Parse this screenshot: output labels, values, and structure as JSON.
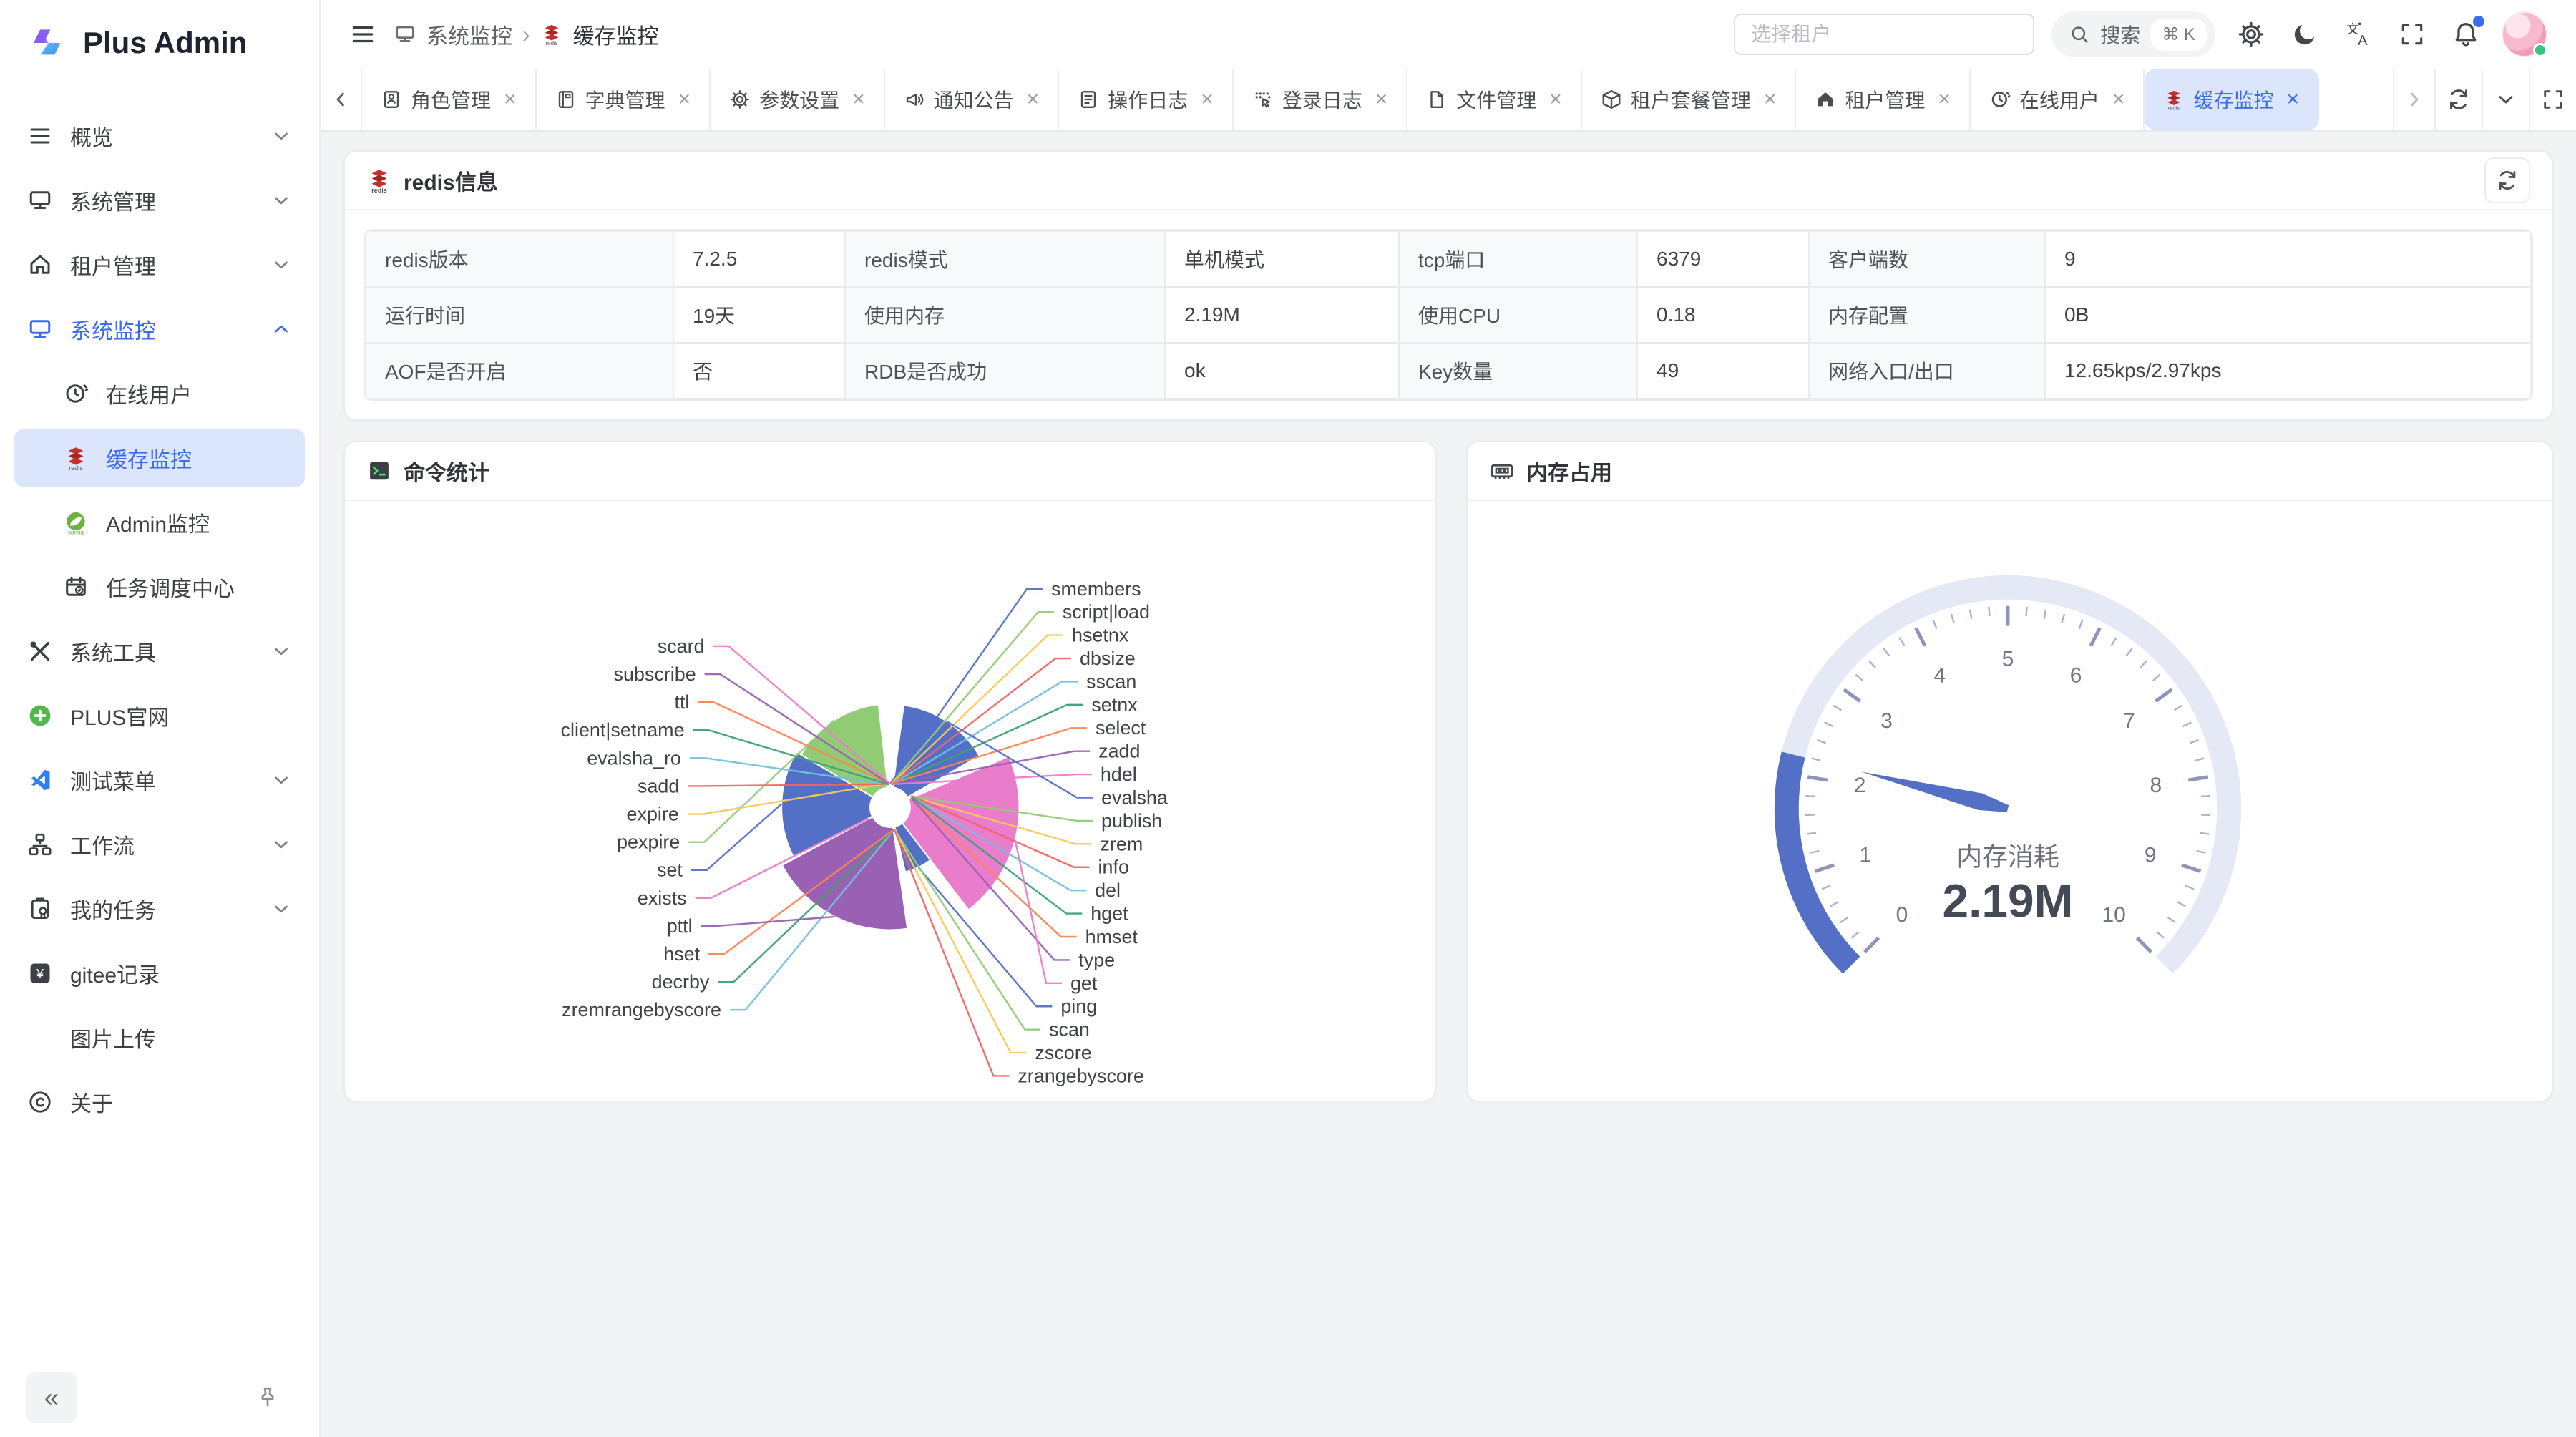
{
  "app": {
    "name": "Plus Admin"
  },
  "header": {
    "breadcrumb": {
      "parent": "系统监控",
      "separator": "›",
      "current": "缓存监控"
    },
    "tenant_placeholder": "选择租户",
    "search_label": "搜索",
    "search_shortcut": "⌘ K"
  },
  "sidebar": {
    "items": [
      {
        "label": "概览",
        "icon": "menu-icon",
        "chevron": "down"
      },
      {
        "label": "系统管理",
        "icon": "monitor-icon",
        "chevron": "down"
      },
      {
        "label": "租户管理",
        "icon": "home-icon",
        "chevron": "down"
      },
      {
        "label": "系统监控",
        "icon": "monitor-icon",
        "chevron": "up",
        "active": true,
        "children": [
          {
            "label": "在线用户",
            "icon": "clock-icon"
          },
          {
            "label": "缓存监控",
            "icon": "redis-icon",
            "active": true
          },
          {
            "label": "Admin监控",
            "icon": "spring-icon"
          },
          {
            "label": "任务调度中心",
            "icon": "calendar-icon"
          }
        ]
      },
      {
        "label": "系统工具",
        "icon": "tools-icon",
        "chevron": "down"
      },
      {
        "label": "PLUS官网",
        "icon": "plus-circle-icon"
      },
      {
        "label": "测试菜单",
        "icon": "vscode-icon",
        "chevron": "down"
      },
      {
        "label": "工作流",
        "icon": "workflow-icon",
        "chevron": "down"
      },
      {
        "label": "我的任务",
        "icon": "clipboard-icon",
        "chevron": "down"
      },
      {
        "label": "gitee记录",
        "icon": "gitee-icon"
      },
      {
        "label": "图片上传",
        "icon": ""
      },
      {
        "label": "关于",
        "icon": "copyright-icon"
      }
    ],
    "collapse_label": "«"
  },
  "tabs": {
    "close_glyph": "×",
    "items": [
      {
        "label": "角色管理",
        "icon": "idcard-icon"
      },
      {
        "label": "字典管理",
        "icon": "book-icon"
      },
      {
        "label": "参数设置",
        "icon": "gear-icon"
      },
      {
        "label": "通知公告",
        "icon": "horn-icon"
      },
      {
        "label": "操作日志",
        "icon": "oplog-icon"
      },
      {
        "label": "登录日志",
        "icon": "loginlog-icon"
      },
      {
        "label": "文件管理",
        "icon": "file-icon"
      },
      {
        "label": "租户套餐管理",
        "icon": "box-icon"
      },
      {
        "label": "租户管理",
        "icon": "home-fill-icon"
      },
      {
        "label": "在线用户",
        "icon": "clock-icon"
      },
      {
        "label": "缓存监控",
        "icon": "redis-icon",
        "active": true
      }
    ]
  },
  "redis_info": {
    "title": "redis信息",
    "rows": [
      [
        {
          "label": "redis版本",
          "value": "7.2.5"
        },
        {
          "label": "redis模式",
          "value": "单机模式"
        },
        {
          "label": "tcp端口",
          "value": "6379"
        },
        {
          "label": "客户端数",
          "value": "9"
        }
      ],
      [
        {
          "label": "运行时间",
          "value": "19天"
        },
        {
          "label": "使用内存",
          "value": "2.19M"
        },
        {
          "label": "使用CPU",
          "value": "0.18"
        },
        {
          "label": "内存配置",
          "value": "0B"
        }
      ],
      [
        {
          "label": "AOF是否开启",
          "value": "否"
        },
        {
          "label": "RDB是否成功",
          "value": "ok"
        },
        {
          "label": "Key数量",
          "value": "49"
        },
        {
          "label": "网络入口/出口",
          "value": "12.65kps/2.97kps"
        }
      ]
    ]
  },
  "cards": {
    "commands_title": "命令统计",
    "memory_title": "内存占用"
  },
  "chart_data": [
    {
      "type": "pie",
      "rose": "radius",
      "title": "命令统计",
      "legend_position": "none",
      "palette": [
        "#5470c6",
        "#91cc75",
        "#fac858",
        "#ee6666",
        "#73c0de",
        "#3ba272",
        "#fc8452",
        "#9a60b4",
        "#ea7ccc"
      ],
      "data": [
        {
          "name": "smembers",
          "value": 12
        },
        {
          "name": "script|load",
          "value": 6
        },
        {
          "name": "hsetnx",
          "value": 6
        },
        {
          "name": "dbsize",
          "value": 8
        },
        {
          "name": "sscan",
          "value": 8
        },
        {
          "name": "setnx",
          "value": 6
        },
        {
          "name": "select",
          "value": 14
        },
        {
          "name": "zadd",
          "value": 10
        },
        {
          "name": "hdel",
          "value": 10
        },
        {
          "name": "evalsha",
          "value": 1050
        },
        {
          "name": "publish",
          "value": 8
        },
        {
          "name": "zrem",
          "value": 8
        },
        {
          "name": "info",
          "value": 16
        },
        {
          "name": "del",
          "value": 14
        },
        {
          "name": "hget",
          "value": 14
        },
        {
          "name": "hmset",
          "value": 8
        },
        {
          "name": "type",
          "value": 10
        },
        {
          "name": "get",
          "value": 1520
        },
        {
          "name": "ping",
          "value": 480
        },
        {
          "name": "scan",
          "value": 16
        },
        {
          "name": "zscore",
          "value": 8
        },
        {
          "name": "zrangebyscore",
          "value": 8
        },
        {
          "name": "zremrangebyscore",
          "value": 6
        },
        {
          "name": "decrby",
          "value": 6
        },
        {
          "name": "hset",
          "value": 8
        },
        {
          "name": "pttl",
          "value": 1400
        },
        {
          "name": "exists",
          "value": 16
        },
        {
          "name": "set",
          "value": 1150
        },
        {
          "name": "pexpire",
          "value": 1060
        },
        {
          "name": "expire",
          "value": 14
        },
        {
          "name": "sadd",
          "value": 10
        },
        {
          "name": "evalsha_ro",
          "value": 8
        },
        {
          "name": "client|setname",
          "value": 8
        },
        {
          "name": "ttl",
          "value": 12
        },
        {
          "name": "subscribe",
          "value": 10
        },
        {
          "name": "scard",
          "value": 12
        }
      ]
    },
    {
      "type": "gauge",
      "title": "内存占用",
      "label": "内存消耗",
      "value": 2.19,
      "display": "2.19M",
      "min": 0,
      "max": 10,
      "tick_labels": [
        "0",
        "1",
        "2",
        "3",
        "4",
        "5",
        "6",
        "7",
        "8",
        "9",
        "10"
      ],
      "progress_color": "#5470c6",
      "track_color": "#e5e9f5"
    }
  ]
}
